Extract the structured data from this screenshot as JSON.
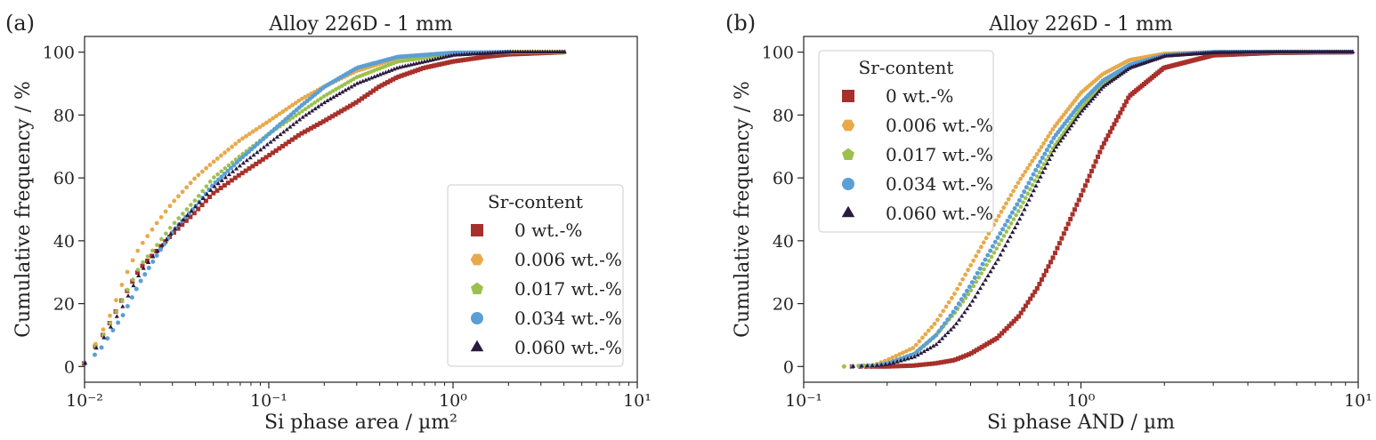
{
  "figure": {
    "panel_a_label": "(a)",
    "panel_b_label": "(b)"
  },
  "chart_data": [
    {
      "type": "scatter",
      "panel": "(a)",
      "title": "Alloy 226D - 1 mm",
      "xlabel": "Si phase area / µm²",
      "ylabel": "Cumulative frequency / %",
      "xscale": "log",
      "xlim": [
        0.01,
        10
      ],
      "ylim": [
        -5,
        105
      ],
      "xticks": [
        "10⁻²",
        "10⁻¹",
        "10⁰",
        "10¹"
      ],
      "yticks": [
        "0",
        "20",
        "40",
        "60",
        "80",
        "100"
      ],
      "legend": {
        "title": "Sr-content",
        "placement": "lower-right"
      },
      "series": [
        {
          "name": "0 wt.-%",
          "marker": "square",
          "color": "#a8302a",
          "x": [
            0.01,
            0.013,
            0.016,
            0.02,
            0.025,
            0.03,
            0.04,
            0.05,
            0.07,
            0.1,
            0.15,
            0.2,
            0.3,
            0.4,
            0.5,
            0.7,
            1.0,
            1.5,
            2.0,
            4.0
          ],
          "y": [
            1,
            11,
            21,
            31,
            37,
            42,
            49,
            55,
            61,
            67,
            74,
            78,
            84,
            89,
            92,
            95,
            97,
            98.5,
            99.3,
            100
          ]
        },
        {
          "name": "0.006 wt.-%",
          "marker": "hexagon",
          "color": "#e8a94a",
          "x": [
            0.01,
            0.012,
            0.014,
            0.016,
            0.018,
            0.02,
            0.025,
            0.03,
            0.04,
            0.05,
            0.07,
            0.1,
            0.15,
            0.2,
            0.3,
            0.5,
            1.0,
            2.0,
            4.0
          ],
          "y": [
            1,
            9,
            17,
            26,
            33,
            38,
            46,
            52,
            60,
            65,
            72,
            78,
            85,
            89,
            94,
            98,
            99.6,
            100,
            100
          ]
        },
        {
          "name": "0.017 wt.-%",
          "marker": "pentagon",
          "color": "#9cc04e",
          "x": [
            0.01,
            0.013,
            0.016,
            0.02,
            0.025,
            0.03,
            0.04,
            0.05,
            0.07,
            0.1,
            0.15,
            0.2,
            0.3,
            0.5,
            1.0,
            2.0,
            4.0
          ],
          "y": [
            1,
            11,
            21,
            32,
            39,
            45,
            53,
            60,
            67,
            74,
            81,
            86,
            92,
            97,
            99.5,
            100,
            100
          ]
        },
        {
          "name": "0.034 wt.-%",
          "marker": "circle",
          "color": "#5b9fd4",
          "x": [
            0.01,
            0.012,
            0.014,
            0.016,
            0.02,
            0.025,
            0.03,
            0.04,
            0.05,
            0.07,
            0.1,
            0.15,
            0.2,
            0.3,
            0.5,
            1.0,
            2.0
          ],
          "y": [
            1,
            5,
            11,
            16,
            27,
            36,
            43,
            51,
            58,
            66,
            74,
            83,
            89,
            95,
            98.5,
            99.8,
            100
          ]
        },
        {
          "name": "0.060 wt.-%",
          "marker": "triangle",
          "color": "#2a1a3e",
          "x": [
            0.01,
            0.013,
            0.016,
            0.02,
            0.025,
            0.03,
            0.04,
            0.05,
            0.07,
            0.1,
            0.15,
            0.2,
            0.3,
            0.5,
            1.0,
            2.0,
            4.0
          ],
          "y": [
            1,
            10,
            19,
            30,
            37,
            43,
            51,
            57,
            64,
            71,
            79,
            84,
            90,
            95,
            99,
            100,
            100
          ]
        }
      ]
    },
    {
      "type": "scatter",
      "panel": "(b)",
      "title": "Alloy 226D - 1 mm",
      "xlabel": "Si phase AND / µm",
      "ylabel": "Cumulative frequency / %",
      "xscale": "log",
      "xlim": [
        0.1,
        10
      ],
      "ylim": [
        -5,
        105
      ],
      "xticks": [
        "10⁻¹",
        "10⁰",
        "10¹"
      ],
      "yticks": [
        "0",
        "20",
        "40",
        "60",
        "80",
        "100"
      ],
      "legend": {
        "title": "Sr-content",
        "placement": "upper-left"
      },
      "series": [
        {
          "name": "0 wt.-%",
          "marker": "square",
          "color": "#a8302a",
          "x": [
            0.15,
            0.2,
            0.25,
            0.3,
            0.35,
            0.4,
            0.5,
            0.6,
            0.7,
            0.8,
            0.9,
            1.0,
            1.2,
            1.5,
            2.0,
            3.0,
            5.0,
            9.5
          ],
          "y": [
            0,
            0,
            0.3,
            1,
            2,
            4,
            9,
            16,
            25,
            35,
            45,
            54,
            70,
            86,
            95,
            99,
            99.8,
            100
          ]
        },
        {
          "name": "0.006 wt.-%",
          "marker": "hexagon",
          "color": "#e8a94a",
          "x": [
            0.14,
            0.18,
            0.2,
            0.25,
            0.3,
            0.35,
            0.4,
            0.5,
            0.6,
            0.7,
            0.8,
            1.0,
            1.2,
            1.5,
            2.0,
            3.0,
            5.0,
            9.5
          ],
          "y": [
            0,
            0.5,
            2,
            6,
            14,
            23,
            32,
            47,
            59,
            68,
            76,
            87,
            93,
            97.5,
            99.5,
            100,
            100,
            100
          ]
        },
        {
          "name": "0.017 wt.-%",
          "marker": "pentagon",
          "color": "#9cc04e",
          "x": [
            0.14,
            0.18,
            0.2,
            0.25,
            0.3,
            0.35,
            0.4,
            0.5,
            0.6,
            0.7,
            0.8,
            1.0,
            1.2,
            1.5,
            2.0,
            3.0,
            5.0,
            9.5
          ],
          "y": [
            0,
            0.3,
            1,
            4,
            10,
            17,
            24,
            38,
            50,
            61,
            70,
            82,
            90,
            96,
            99,
            100,
            100,
            100
          ]
        },
        {
          "name": "0.034 wt.-%",
          "marker": "circle",
          "color": "#5b9fd4",
          "x": [
            0.15,
            0.18,
            0.2,
            0.25,
            0.3,
            0.35,
            0.4,
            0.5,
            0.6,
            0.7,
            0.8,
            1.0,
            1.2,
            1.5,
            2.0,
            3.0,
            5.0,
            9.5
          ],
          "y": [
            0,
            0.3,
            1,
            4,
            10,
            18,
            26,
            41,
            53,
            64,
            73,
            84,
            91,
            96,
            99,
            100,
            100,
            100
          ]
        },
        {
          "name": "0.060 wt.-%",
          "marker": "triangle",
          "color": "#2a1a3e",
          "x": [
            0.15,
            0.18,
            0.2,
            0.25,
            0.3,
            0.35,
            0.4,
            0.5,
            0.6,
            0.7,
            0.8,
            1.0,
            1.2,
            1.5,
            2.0,
            3.0,
            5.0,
            9.5
          ],
          "y": [
            0,
            0.2,
            0.6,
            3,
            7,
            13,
            20,
            34,
            47,
            59,
            69,
            81,
            89,
            95,
            98.7,
            99.8,
            100,
            100
          ]
        }
      ]
    }
  ]
}
